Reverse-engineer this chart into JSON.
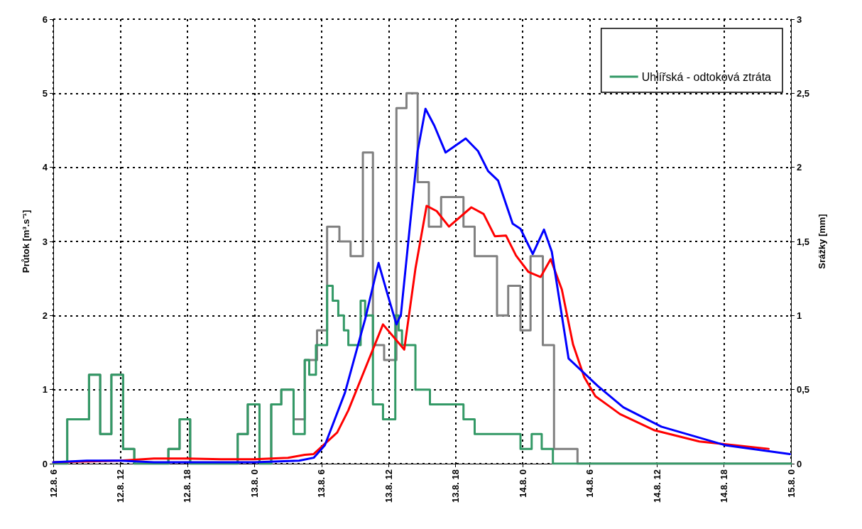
{
  "chart_data": {
    "type": "line",
    "ylabel": "Průtok [m³.s⁻¹]",
    "y2label": "Srážky [mm]",
    "xlim": [
      "--08-12T06:00",
      "--08-15T00:00"
    ],
    "xticks": [
      {
        "value": "--08-12T06:00",
        "label": "12.8. 6"
      },
      {
        "value": "--08-12T12:00",
        "label": "12.8. 12"
      },
      {
        "value": "--08-12T18:00",
        "label": "12.8. 18"
      },
      {
        "value": "--08-13T00:00",
        "label": "13.8. 0"
      },
      {
        "value": "--08-13T06:00",
        "label": "13.8. 6"
      },
      {
        "value": "--08-13T12:00",
        "label": "13.8. 12"
      },
      {
        "value": "--08-13T18:00",
        "label": "13.8. 18"
      },
      {
        "value": "--08-14T00:00",
        "label": "14.8. 0"
      },
      {
        "value": "--08-14T06:00",
        "label": "14.8. 6"
      },
      {
        "value": "--08-14T12:00",
        "label": "14.8. 12"
      },
      {
        "value": "--08-14T18:00",
        "label": "14.8. 18"
      },
      {
        "value": "--08-15T00:00",
        "label": "15.8. 0"
      }
    ],
    "ylim": [
      0,
      6
    ],
    "yticks": [
      0,
      1,
      2,
      3,
      4,
      5,
      6
    ],
    "y2lim": [
      0,
      3
    ],
    "y2ticks": [
      0,
      {
        "value": 0.5,
        "label": "0,5"
      },
      1,
      {
        "value": 1.5,
        "label": "1,5"
      },
      2,
      {
        "value": 2.5,
        "label": "2,5"
      },
      3
    ],
    "grid": true,
    "legend": "top right",
    "line_style": "solid",
    "marker": "none",
    "series": [
      {
        "type": "step",
        "axis": "y2",
        "color": "#808080",
        "x": [
          "--08-12T06:00",
          "--08-12T07:15",
          "--08-12T09:12",
          "--08-12T10:12",
          "--08-12T11:12",
          "--08-12T12:15",
          "--08-12T13:15",
          "--08-12T16:18",
          "--08-12T17:18",
          "--08-12T18:15",
          "--08-12T22:30",
          "--08-12T23:24",
          "--08-13T00:27",
          "--08-13T01:30",
          "--08-13T02:24",
          "--08-13T03:30",
          "--08-13T04:30",
          "--08-13T05:36",
          "--08-13T06:30",
          "--08-13T07:36",
          "--08-13T08:36",
          "--08-13T09:42",
          "--08-13T10:36",
          "--08-13T11:36",
          "--08-13T12:42",
          "--08-13T13:36",
          "--08-13T14:36",
          "--08-13T15:36",
          "--08-13T16:42",
          "--08-13T18:42",
          "--08-13T19:42",
          "--08-13T21:42",
          "--08-13T22:42",
          "--08-13T23:48",
          "--08-14T00:42",
          "--08-14T01:48",
          "--08-14T02:48",
          "--08-14T04:54",
          "--08-15T00:00"
        ],
        "values": [
          0,
          0.3,
          0.6,
          0.2,
          0.6,
          0.1,
          0,
          0.1,
          0.3,
          0,
          0.2,
          0.4,
          0,
          0.4,
          0.5,
          0.3,
          0.7,
          0.9,
          1.6,
          1.5,
          1.4,
          2.1,
          0.8,
          0.7,
          2.4,
          2.5,
          1.9,
          1.6,
          1.8,
          1.6,
          1.4,
          1.0,
          1.2,
          0.9,
          1.4,
          0.8,
          0.1,
          0,
          0
        ]
      },
      {
        "type": "step",
        "axis": "y2",
        "name": "Uhlířská - odtoková ztráta",
        "color": "#339966",
        "x": [
          "--08-12T06:00",
          "--08-12T07:15",
          "--08-12T09:12",
          "--08-12T10:12",
          "--08-12T11:12",
          "--08-12T12:15",
          "--08-12T13:15",
          "--08-12T16:18",
          "--08-12T17:18",
          "--08-12T18:15",
          "--08-12T22:30",
          "--08-12T23:24",
          "--08-13T00:27",
          "--08-13T01:30",
          "--08-13T02:24",
          "--08-13T03:30",
          "--08-13T04:30",
          "--08-13T04:54",
          "--08-13T05:30",
          "--08-13T06:30",
          "--08-13T07:00",
          "--08-13T07:30",
          "--08-13T08:00",
          "--08-13T08:24",
          "--08-13T09:30",
          "--08-13T09:54",
          "--08-13T10:36",
          "--08-13T11:30",
          "--08-13T12:36",
          "--08-13T12:54",
          "--08-13T13:12",
          "--08-13T14:24",
          "--08-13T15:42",
          "--08-13T18:42",
          "--08-13T19:42",
          "--08-13T23:48",
          "--08-14T00:48",
          "--08-14T01:42",
          "--08-14T02:42",
          "--08-15T00:00"
        ],
        "values": [
          0,
          0.3,
          0.6,
          0.2,
          0.6,
          0.1,
          0,
          0.1,
          0.3,
          0,
          0.2,
          0.4,
          0,
          0.4,
          0.5,
          0.2,
          0.7,
          0.6,
          0.8,
          1.2,
          1.1,
          1.0,
          0.9,
          0.8,
          1.1,
          1.0,
          0.4,
          0.3,
          1.0,
          0.9,
          0.8,
          0.5,
          0.4,
          0.3,
          0.2,
          0.1,
          0.2,
          0.1,
          0,
          0
        ]
      },
      {
        "color": "#ff0000",
        "x": [
          "--08-12T06:00",
          "--08-12T12:00",
          "--08-12T15:00",
          "--08-12T18:00",
          "--08-12T21:00",
          "--08-13T00:00",
          "--08-13T03:00",
          "--08-13T04:30",
          "--08-13T05:18",
          "--08-13T07:24",
          "--08-13T08:24",
          "--08-13T11:30",
          "--08-13T13:24",
          "--08-13T14:24",
          "--08-13T15:24",
          "--08-13T16:18",
          "--08-13T17:24",
          "--08-13T19:24",
          "--08-13T20:30",
          "--08-13T21:30",
          "--08-13T22:30",
          "--08-13T23:24",
          "--08-14T00:30",
          "--08-14T01:36",
          "--08-14T02:30",
          "--08-14T03:30",
          "--08-14T04:30",
          "--08-14T05:30",
          "--08-14T06:30",
          "--08-14T07:42",
          "--08-14T08:42",
          "--08-14T11:48",
          "--08-14T15:48",
          "--08-14T22:00"
        ],
        "values": [
          0.02,
          0.04,
          0.07,
          0.07,
          0.06,
          0.06,
          0.08,
          0.12,
          0.13,
          0.42,
          0.72,
          1.88,
          1.54,
          2.63,
          3.48,
          3.41,
          3.2,
          3.46,
          3.37,
          3.07,
          3.08,
          2.81,
          2.59,
          2.52,
          2.76,
          2.35,
          1.61,
          1.17,
          0.91,
          0.78,
          0.67,
          0.45,
          0.3,
          0.2
        ]
      },
      {
        "color": "#0000ff",
        "x": [
          "--08-12T06:00",
          "--08-12T09:00",
          "--08-12T12:00",
          "--08-12T15:00",
          "--08-13T00:00",
          "--08-13T04:00",
          "--08-13T05:18",
          "--08-13T06:18",
          "--08-13T08:06",
          "--08-13T09:54",
          "--08-13T11:06",
          "--08-13T11:54",
          "--08-13T12:42",
          "--08-13T13:06",
          "--08-13T13:54",
          "--08-13T14:36",
          "--08-13T15:18",
          "--08-13T16:06",
          "--08-13T17:06",
          "--08-13T18:54",
          "--08-13T20:00",
          "--08-13T20:54",
          "--08-13T21:48",
          "--08-13T23:06",
          "--08-13T23:48",
          "--08-14T00:54",
          "--08-14T01:54",
          "--08-14T02:36",
          "--08-14T03:18",
          "--08-14T04:06",
          "--08-14T06:42",
          "--08-14T09:00",
          "--08-14T12:24",
          "--08-14T18:06",
          "--08-14T23:54"
        ],
        "values": [
          0.02,
          0.04,
          0.04,
          0.02,
          0.02,
          0.04,
          0.08,
          0.25,
          0.96,
          1.95,
          2.71,
          2.29,
          1.88,
          2.01,
          3.2,
          4.22,
          4.79,
          4.56,
          4.2,
          4.39,
          4.22,
          3.95,
          3.82,
          3.24,
          3.17,
          2.83,
          3.16,
          2.86,
          2.19,
          1.42,
          1.05,
          0.76,
          0.5,
          0.25,
          0.13
        ]
      }
    ]
  }
}
